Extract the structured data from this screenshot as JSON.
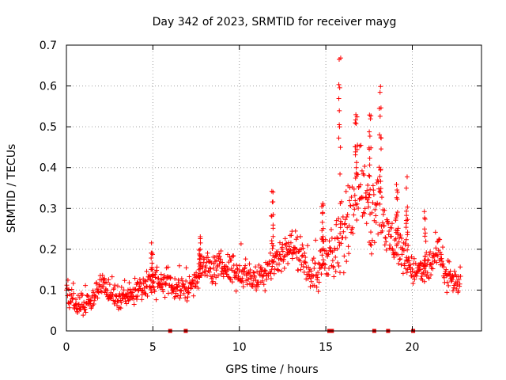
{
  "chart_data": {
    "type": "scatter",
    "title": "Day 342 of 2023, SRMTID for receiver mayg",
    "xlabel": "GPS time / hours",
    "ylabel": "SRMTID / TECUs",
    "xlim": [
      0,
      24
    ],
    "ylim": [
      0,
      0.7
    ],
    "x_ticks": [
      "0",
      "5",
      "10",
      "15",
      "20"
    ],
    "y_ticks": [
      "0",
      "0.1",
      "0.2",
      "0.3",
      "0.4",
      "0.5",
      "0.6",
      "0.7"
    ],
    "grid": true,
    "marker": "+",
    "marker_color": "#ff0000",
    "series": [
      {
        "name": "SRMTID",
        "trend_x": [
          0.0,
          0.5,
          1.0,
          1.5,
          2.0,
          2.5,
          3.0,
          3.5,
          4.0,
          4.5,
          5.0,
          5.5,
          6.0,
          6.5,
          7.0,
          7.5,
          8.0,
          8.5,
          9.0,
          9.5,
          10.0,
          10.5,
          11.0,
          11.5,
          12.0,
          12.5,
          13.0,
          13.5,
          14.0,
          14.5,
          15.0,
          15.5,
          16.0,
          16.5,
          17.0,
          17.5,
          18.0,
          18.5,
          19.0,
          19.5,
          20.0,
          20.5,
          21.0,
          21.5,
          22.0,
          22.5,
          22.8
        ],
        "trend_y": [
          0.09,
          0.07,
          0.06,
          0.07,
          0.12,
          0.09,
          0.08,
          0.09,
          0.1,
          0.11,
          0.11,
          0.12,
          0.1,
          0.11,
          0.1,
          0.13,
          0.16,
          0.15,
          0.16,
          0.15,
          0.14,
          0.14,
          0.12,
          0.15,
          0.17,
          0.19,
          0.21,
          0.18,
          0.15,
          0.13,
          0.2,
          0.18,
          0.22,
          0.33,
          0.38,
          0.25,
          0.35,
          0.23,
          0.22,
          0.19,
          0.15,
          0.14,
          0.16,
          0.19,
          0.13,
          0.12,
          0.11
        ],
        "spread": [
          0.03,
          0.03,
          0.03,
          0.03,
          0.03,
          0.03,
          0.03,
          0.03,
          0.03,
          0.04,
          0.04,
          0.04,
          0.04,
          0.04,
          0.04,
          0.04,
          0.04,
          0.04,
          0.04,
          0.04,
          0.04,
          0.04,
          0.04,
          0.05,
          0.05,
          0.04,
          0.04,
          0.04,
          0.04,
          0.05,
          0.07,
          0.08,
          0.12,
          0.12,
          0.11,
          0.1,
          0.12,
          0.07,
          0.07,
          0.05,
          0.04,
          0.04,
          0.05,
          0.05,
          0.04,
          0.03,
          0.03
        ],
        "peaks": [
          {
            "x": 11.9,
            "y": 0.35
          },
          {
            "x": 14.8,
            "y": 0.34
          },
          {
            "x": 15.8,
            "y": 0.69
          },
          {
            "x": 16.75,
            "y": 0.53
          },
          {
            "x": 17.55,
            "y": 0.53
          },
          {
            "x": 18.15,
            "y": 0.6
          },
          {
            "x": 19.1,
            "y": 0.36
          },
          {
            "x": 19.7,
            "y": 0.39
          },
          {
            "x": 20.75,
            "y": 0.3
          },
          {
            "x": 4.95,
            "y": 0.23
          },
          {
            "x": 7.7,
            "y": 0.24
          }
        ],
        "zero_values_x": [
          6.0,
          6.9,
          15.2,
          15.35,
          17.8,
          18.6,
          20.05
        ]
      }
    ]
  }
}
